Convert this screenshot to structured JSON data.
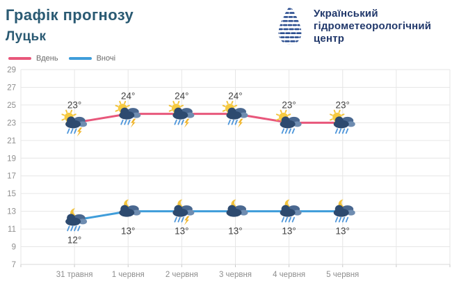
{
  "header": {
    "title": "Графік прогнозу",
    "city": "Луцьк",
    "logo": {
      "line1": "Український",
      "line2": "гідрометеорологічний",
      "line3": "центр"
    }
  },
  "legend": [
    {
      "label": "Вдень",
      "color": "#e8577b"
    },
    {
      "label": "Вночі",
      "color": "#3f9dda"
    }
  ],
  "chart_data": {
    "type": "line",
    "title": "Графік прогнозу — Луцьк",
    "categories": [
      "31 травня",
      "1 червня",
      "2 червня",
      "3 червня",
      "4 червня",
      "5 червня"
    ],
    "series": [
      {
        "name": "Вдень",
        "color": "#e8577b",
        "values": [
          23,
          24,
          24,
          24,
          23,
          23
        ],
        "icons": [
          "sun-cloud-rain-lightning",
          "sun-cloud-rain-lightning",
          "sun-cloud-rain-lightning",
          "sun-cloud-rain-lightning",
          "sun-cloud-rain",
          "sun-cloud-rain"
        ],
        "label_position": "above"
      },
      {
        "name": "Вночі",
        "color": "#3f9dda",
        "values": [
          12,
          13,
          13,
          13,
          13,
          13
        ],
        "icons": [
          "moon-cloud-rain",
          "moon-cloud",
          "moon-cloud-rain-lightning",
          "moon-cloud",
          "moon-cloud-rain",
          "moon-cloud-rain"
        ],
        "label_position": "below"
      }
    ],
    "unit": "°",
    "y_ticks": [
      29,
      27,
      25,
      23,
      21,
      19,
      17,
      15,
      13,
      11,
      9,
      7
    ],
    "ylim": [
      7,
      29
    ],
    "grid": true,
    "legend_position": "top-left"
  },
  "colors": {
    "title_text": "#2a5a73",
    "logo_text": "#21386b",
    "day_line": "#e8577b",
    "night_line": "#3f9dda",
    "grid": "#e6e6e6",
    "axis_label": "#8e8e8e",
    "temp_label": "#3f3f3f",
    "sun_moon": "#f2c33d",
    "lightning": "#f0b429",
    "rain": "#4e96da"
  }
}
